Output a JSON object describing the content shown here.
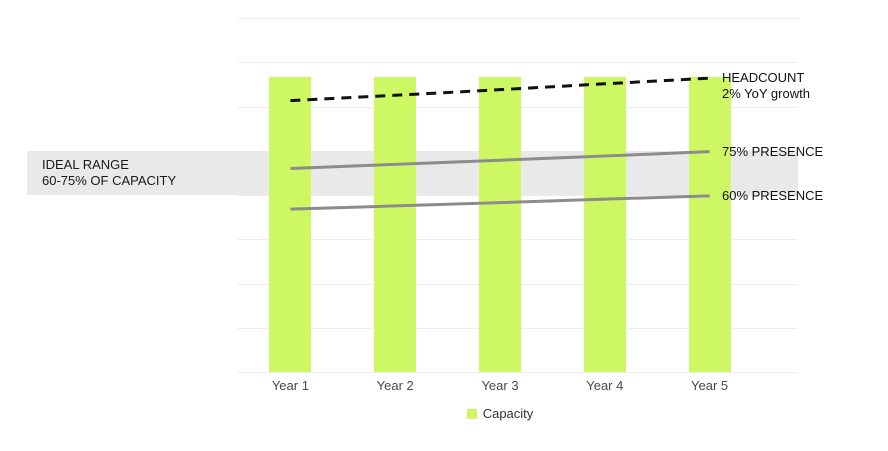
{
  "chart_data": {
    "type": "bar",
    "subtype": "combo-bar-line",
    "categories": [
      "Year 1",
      "Year 2",
      "Year 3",
      "Year 4",
      "Year 5"
    ],
    "bar_series": {
      "name": "Capacity",
      "values": [
        100,
        100,
        100,
        100,
        100
      ],
      "color": "#cdf863"
    },
    "line_series": [
      {
        "name": "Headcount",
        "label": "HEADCOUNT",
        "sublabel": "2% YoY growth",
        "values": [
          92,
          93.8,
          95.7,
          97.7,
          99.6
        ],
        "style": "dashed",
        "color": "#111111"
      },
      {
        "name": "75% Presence",
        "label": "75% PRESENCE",
        "values": [
          69,
          70.4,
          71.8,
          73.2,
          74.7
        ],
        "style": "solid",
        "color": "#8c8c8c"
      },
      {
        "name": "60% Presence",
        "label": "60% PRESENCE",
        "values": [
          55.2,
          56.3,
          57.4,
          58.6,
          59.7
        ],
        "style": "solid",
        "color": "#8c8c8c"
      }
    ],
    "annotation_band": {
      "label_line1": "IDEAL RANGE",
      "label_line2": "60-75% OF CAPACITY",
      "from": 60,
      "to": 75,
      "color": "#e9e9e9"
    },
    "legend": [
      {
        "label": "Capacity",
        "color": "#cdf863"
      }
    ],
    "title": "",
    "xlabel": "",
    "ylabel": "",
    "ylim": [
      0,
      120
    ],
    "gridline_step": 15,
    "grid": true,
    "y_axis_labels_visible": false,
    "legend_position": "bottom-center"
  }
}
